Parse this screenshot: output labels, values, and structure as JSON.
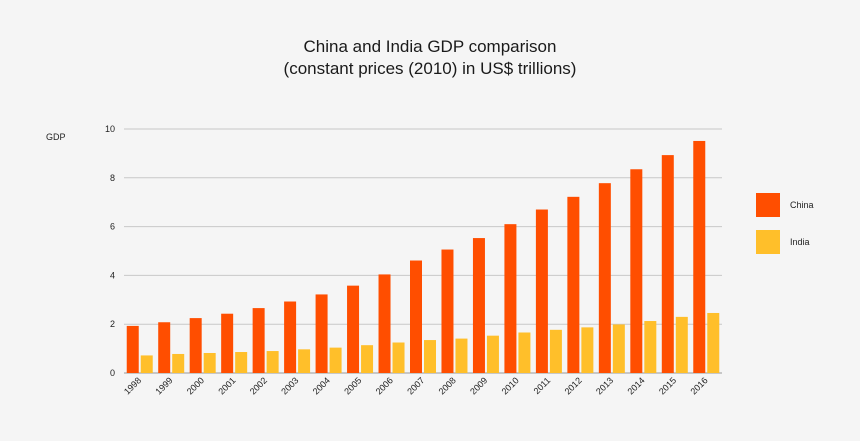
{
  "chart_data": {
    "type": "bar",
    "title": "China and India GDP comparison",
    "subtitle": "(constant prices (2010) in US$ trillions)",
    "xlabel": "",
    "ylabel": "GDP",
    "ylim": [
      0,
      10
    ],
    "yticks": [
      "0",
      "2",
      "4",
      "6",
      "8",
      "10"
    ],
    "grid": true,
    "legend_position": "right",
    "categories": [
      "1998",
      "1999",
      "2000",
      "2001",
      "2002",
      "2003",
      "2004",
      "2005",
      "2006",
      "2007",
      "2008",
      "2009",
      "2010",
      "2011",
      "2012",
      "2013",
      "2014",
      "2015",
      "2016"
    ],
    "series": [
      {
        "name": "China",
        "color": "#ff4e00",
        "values": [
          1.93,
          2.08,
          2.25,
          2.43,
          2.66,
          2.93,
          3.22,
          3.58,
          4.04,
          4.61,
          5.06,
          5.53,
          6.1,
          6.7,
          7.22,
          7.78,
          8.35,
          8.93,
          9.51
        ]
      },
      {
        "name": "India",
        "color": "#ffbf2a",
        "values": [
          0.72,
          0.78,
          0.82,
          0.86,
          0.9,
          0.97,
          1.04,
          1.14,
          1.25,
          1.35,
          1.41,
          1.53,
          1.66,
          1.77,
          1.87,
          1.99,
          2.13,
          2.3,
          2.46
        ]
      }
    ]
  }
}
